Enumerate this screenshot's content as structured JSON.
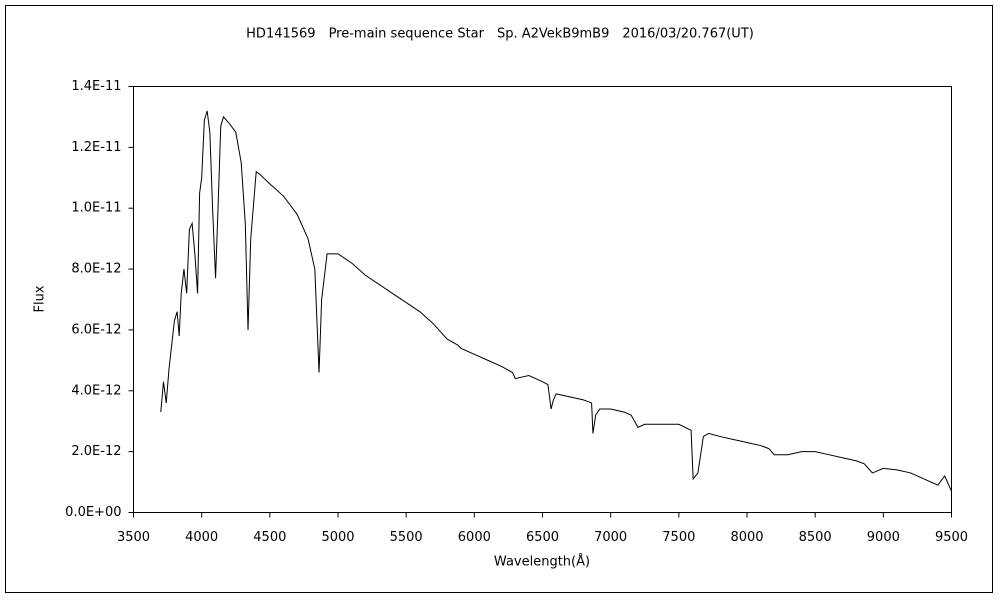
{
  "chart_data": {
    "type": "line",
    "title": "HD141569　Pre-main sequence Star　Sp. A2VekB9mB9　2016/03/20.767(UT)",
    "x_label": "Wavelength(Å)",
    "y_label": "Flux",
    "xlim": [
      3500,
      9500
    ],
    "xticks": [
      3500,
      4000,
      4500,
      5000,
      5500,
      6000,
      6500,
      7000,
      7500,
      8000,
      8500,
      9000,
      9500
    ],
    "ylim": [
      0,
      1.4e-11
    ],
    "yticks": [
      {
        "value": 0,
        "label": "0.0E+00"
      },
      {
        "value": 2e-12,
        "label": "2.0E-12"
      },
      {
        "value": 4e-12,
        "label": "4.0E-12"
      },
      {
        "value": 6e-12,
        "label": "6.0E-12"
      },
      {
        "value": 8e-12,
        "label": "8.0E-12"
      },
      {
        "value": 1e-11,
        "label": "1.0E-11"
      },
      {
        "value": 1.2e-11,
        "label": "1.2E-11"
      },
      {
        "value": 1.4e-11,
        "label": "1.4E-11"
      }
    ],
    "series": [
      {
        "name": "HD141569",
        "color": "#000000",
        "x": [
          3700,
          3720,
          3740,
          3760,
          3780,
          3800,
          3820,
          3835,
          3850,
          3870,
          3890,
          3910,
          3930,
          3950,
          3970,
          3985,
          4000,
          4020,
          4040,
          4060,
          4080,
          4102,
          4120,
          4140,
          4160,
          4200,
          4250,
          4290,
          4320,
          4340,
          4360,
          4400,
          4430,
          4500,
          4600,
          4700,
          4780,
          4830,
          4861,
          4880,
          4920,
          5000,
          5100,
          5200,
          5300,
          5400,
          5500,
          5600,
          5700,
          5800,
          5880,
          5900,
          6000,
          6100,
          6200,
          6280,
          6300,
          6400,
          6500,
          6540,
          6563,
          6580,
          6600,
          6700,
          6800,
          6860,
          6870,
          6890,
          6920,
          7000,
          7100,
          7150,
          7200,
          7250,
          7300,
          7400,
          7500,
          7590,
          7605,
          7640,
          7680,
          7720,
          7800,
          7900,
          8000,
          8100,
          8160,
          8200,
          8300,
          8400,
          8500,
          8600,
          8700,
          8800,
          8860,
          8880,
          8920,
          9000,
          9100,
          9200,
          9300,
          9400,
          9450,
          9500
        ],
        "values": [
          3.3e-12,
          4.3e-12,
          3.6e-12,
          4.7e-12,
          5.5e-12,
          6.3e-12,
          6.6e-12,
          5.8e-12,
          7.2e-12,
          8e-12,
          7.2e-12,
          9.3e-12,
          9.5e-12,
          8.5e-12,
          7.2e-12,
          1.05e-11,
          1.1e-11,
          1.29e-11,
          1.32e-11,
          1.25e-11,
          1e-11,
          7.7e-12,
          1e-11,
          1.27e-11,
          1.3e-11,
          1.28e-11,
          1.25e-11,
          1.15e-11,
          9.5e-12,
          6e-12,
          9e-12,
          1.12e-11,
          1.11e-11,
          1.08e-11,
          1.04e-11,
          9.8e-12,
          9e-12,
          8e-12,
          4.6e-12,
          7e-12,
          8.5e-12,
          8.5e-12,
          8.2e-12,
          7.8e-12,
          7.5e-12,
          7.2e-12,
          6.9e-12,
          6.6e-12,
          6.2e-12,
          5.7e-12,
          5.5e-12,
          5.4e-12,
          5.2e-12,
          5e-12,
          4.8e-12,
          4.6e-12,
          4.4e-12,
          4.5e-12,
          4.3e-12,
          4.2e-12,
          3.4e-12,
          3.7e-12,
          3.9e-12,
          3.8e-12,
          3.7e-12,
          3.6e-12,
          2.6e-12,
          3.2e-12,
          3.4e-12,
          3.4e-12,
          3.3e-12,
          3.2e-12,
          2.8e-12,
          2.9e-12,
          2.9e-12,
          2.9e-12,
          2.9e-12,
          2.7e-12,
          1.1e-12,
          1.3e-12,
          2.5e-12,
          2.6e-12,
          2.5e-12,
          2.4e-12,
          2.3e-12,
          2.2e-12,
          2.1e-12,
          1.9e-12,
          1.9e-12,
          2e-12,
          2e-12,
          1.9e-12,
          1.8e-12,
          1.7e-12,
          1.6e-12,
          1.5e-12,
          1.3e-12,
          1.45e-12,
          1.4e-12,
          1.3e-12,
          1.1e-12,
          9e-13,
          1.2e-12,
          7e-13
        ]
      }
    ]
  }
}
